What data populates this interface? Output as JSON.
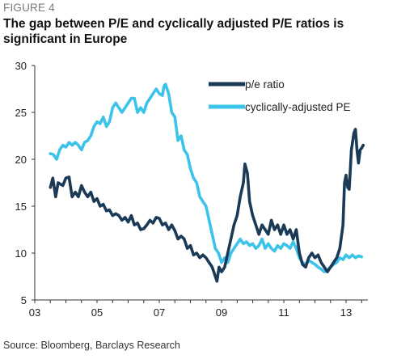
{
  "figure_label": "FIGURE 4",
  "title": "The gap between P/E and cyclically adjusted P/E ratios is significant in Europe",
  "source": "Source: Bloomberg, Barclays Research",
  "colors": {
    "pe": "#1b3a57",
    "cape": "#3cc3ea",
    "axis": "#333333"
  },
  "chart_data": {
    "type": "line",
    "title": "The gap between P/E and cyclically adjusted P/E ratios is significant in Europe",
    "xlabel": "",
    "ylabel": "",
    "xlim": [
      2003,
      2013.7
    ],
    "ylim": [
      5,
      30
    ],
    "x_ticks": [
      2003,
      2005,
      2007,
      2009,
      2011,
      2013
    ],
    "x_tick_labels": [
      "03",
      "05",
      "07",
      "09",
      "11",
      "13"
    ],
    "y_ticks": [
      5,
      10,
      15,
      20,
      25,
      30
    ],
    "grid": false,
    "legend_position": "top-right",
    "series": [
      {
        "name": "p/e ratio",
        "color": "#1b3a57",
        "points": [
          [
            2003.5,
            17.0
          ],
          [
            2003.58,
            18.0
          ],
          [
            2003.67,
            16.0
          ],
          [
            2003.75,
            17.5
          ],
          [
            2003.9,
            17.2
          ],
          [
            2004.0,
            18.0
          ],
          [
            2004.1,
            18.1
          ],
          [
            2004.2,
            16.0
          ],
          [
            2004.3,
            16.5
          ],
          [
            2004.4,
            16.0
          ],
          [
            2004.5,
            17.2
          ],
          [
            2004.6,
            16.5
          ],
          [
            2004.7,
            16.0
          ],
          [
            2004.8,
            16.5
          ],
          [
            2004.9,
            15.5
          ],
          [
            2005.0,
            15.8
          ],
          [
            2005.1,
            15.0
          ],
          [
            2005.2,
            15.2
          ],
          [
            2005.3,
            14.5
          ],
          [
            2005.4,
            14.6
          ],
          [
            2005.5,
            14.0
          ],
          [
            2005.6,
            14.2
          ],
          [
            2005.7,
            14.0
          ],
          [
            2005.8,
            13.5
          ],
          [
            2005.9,
            13.8
          ],
          [
            2006.0,
            13.3
          ],
          [
            2006.1,
            14.0
          ],
          [
            2006.2,
            13.0
          ],
          [
            2006.3,
            13.2
          ],
          [
            2006.4,
            12.5
          ],
          [
            2006.5,
            12.6
          ],
          [
            2006.6,
            13.0
          ],
          [
            2006.7,
            13.5
          ],
          [
            2006.8,
            13.2
          ],
          [
            2006.9,
            13.8
          ],
          [
            2007.0,
            13.7
          ],
          [
            2007.1,
            13.0
          ],
          [
            2007.2,
            13.2
          ],
          [
            2007.3,
            12.5
          ],
          [
            2007.4,
            13.0
          ],
          [
            2007.5,
            12.4
          ],
          [
            2007.6,
            11.5
          ],
          [
            2007.7,
            11.8
          ],
          [
            2007.8,
            11.5
          ],
          [
            2007.9,
            10.5
          ],
          [
            2008.0,
            10.8
          ],
          [
            2008.1,
            9.8
          ],
          [
            2008.2,
            10.0
          ],
          [
            2008.3,
            9.5
          ],
          [
            2008.4,
            9.8
          ],
          [
            2008.5,
            9.5
          ],
          [
            2008.6,
            9.0
          ],
          [
            2008.7,
            8.5
          ],
          [
            2008.8,
            7.5
          ],
          [
            2008.85,
            7.0
          ],
          [
            2008.92,
            8.5
          ],
          [
            2009.0,
            8.0
          ],
          [
            2009.1,
            8.5
          ],
          [
            2009.2,
            10.0
          ],
          [
            2009.3,
            11.5
          ],
          [
            2009.4,
            13.0
          ],
          [
            2009.5,
            14.0
          ],
          [
            2009.6,
            16.0
          ],
          [
            2009.7,
            17.5
          ],
          [
            2009.75,
            19.5
          ],
          [
            2009.83,
            18.5
          ],
          [
            2009.9,
            15.5
          ],
          [
            2010.0,
            14.0
          ],
          [
            2010.1,
            13.0
          ],
          [
            2010.2,
            12.0
          ],
          [
            2010.3,
            13.0
          ],
          [
            2010.4,
            12.5
          ],
          [
            2010.5,
            12.0
          ],
          [
            2010.6,
            13.5
          ],
          [
            2010.7,
            12.5
          ],
          [
            2010.8,
            13.0
          ],
          [
            2010.9,
            12.0
          ],
          [
            2011.0,
            13.0
          ],
          [
            2011.1,
            12.0
          ],
          [
            2011.2,
            12.5
          ],
          [
            2011.3,
            11.5
          ],
          [
            2011.4,
            12.5
          ],
          [
            2011.5,
            10.0
          ],
          [
            2011.6,
            8.8
          ],
          [
            2011.7,
            8.5
          ],
          [
            2011.8,
            9.5
          ],
          [
            2011.9,
            10.0
          ],
          [
            2012.0,
            9.5
          ],
          [
            2012.1,
            9.8
          ],
          [
            2012.2,
            9.0
          ],
          [
            2012.3,
            8.5
          ],
          [
            2012.4,
            8.0
          ],
          [
            2012.5,
            8.5
          ],
          [
            2012.6,
            9.0
          ],
          [
            2012.7,
            9.5
          ],
          [
            2012.8,
            10.5
          ],
          [
            2012.9,
            13.0
          ],
          [
            2012.95,
            17.5
          ],
          [
            2013.0,
            18.3
          ],
          [
            2013.05,
            17.0
          ],
          [
            2013.1,
            16.8
          ],
          [
            2013.17,
            21.0
          ],
          [
            2013.25,
            22.8
          ],
          [
            2013.3,
            23.2
          ],
          [
            2013.35,
            21.0
          ],
          [
            2013.4,
            19.6
          ],
          [
            2013.45,
            21.0
          ],
          [
            2013.5,
            21.2
          ],
          [
            2013.55,
            21.5
          ]
        ]
      },
      {
        "name": "cyclically-adjusted PE",
        "color": "#3cc3ea",
        "points": [
          [
            2003.5,
            20.6
          ],
          [
            2003.6,
            20.5
          ],
          [
            2003.7,
            20.0
          ],
          [
            2003.8,
            21.0
          ],
          [
            2003.9,
            21.5
          ],
          [
            2004.0,
            21.3
          ],
          [
            2004.1,
            21.8
          ],
          [
            2004.2,
            21.5
          ],
          [
            2004.3,
            21.8
          ],
          [
            2004.4,
            21.5
          ],
          [
            2004.5,
            21.0
          ],
          [
            2004.6,
            21.8
          ],
          [
            2004.7,
            22.0
          ],
          [
            2004.8,
            22.5
          ],
          [
            2004.9,
            23.5
          ],
          [
            2005.0,
            24.0
          ],
          [
            2005.1,
            23.8
          ],
          [
            2005.2,
            24.5
          ],
          [
            2005.3,
            23.5
          ],
          [
            2005.4,
            24.0
          ],
          [
            2005.5,
            25.5
          ],
          [
            2005.6,
            26.0
          ],
          [
            2005.7,
            25.5
          ],
          [
            2005.8,
            25.0
          ],
          [
            2005.9,
            25.5
          ],
          [
            2006.0,
            26.0
          ],
          [
            2006.1,
            26.5
          ],
          [
            2006.2,
            26.5
          ],
          [
            2006.3,
            25.0
          ],
          [
            2006.4,
            25.5
          ],
          [
            2006.5,
            25.0
          ],
          [
            2006.6,
            26.0
          ],
          [
            2006.7,
            26.5
          ],
          [
            2006.8,
            27.0
          ],
          [
            2006.9,
            27.5
          ],
          [
            2007.0,
            27.0
          ],
          [
            2007.1,
            26.8
          ],
          [
            2007.15,
            27.8
          ],
          [
            2007.2,
            28.0
          ],
          [
            2007.3,
            27.0
          ],
          [
            2007.4,
            25.0
          ],
          [
            2007.5,
            24.5
          ],
          [
            2007.6,
            22.0
          ],
          [
            2007.7,
            22.5
          ],
          [
            2007.8,
            21.0
          ],
          [
            2007.9,
            20.5
          ],
          [
            2008.0,
            19.0
          ],
          [
            2008.1,
            18.0
          ],
          [
            2008.2,
            17.5
          ],
          [
            2008.3,
            16.0
          ],
          [
            2008.4,
            15.5
          ],
          [
            2008.5,
            15.0
          ],
          [
            2008.6,
            13.5
          ],
          [
            2008.7,
            12.0
          ],
          [
            2008.8,
            10.5
          ],
          [
            2008.9,
            10.0
          ],
          [
            2009.0,
            9.0
          ],
          [
            2009.1,
            9.5
          ],
          [
            2009.2,
            9.0
          ],
          [
            2009.3,
            10.0
          ],
          [
            2009.4,
            10.5
          ],
          [
            2009.5,
            11.0
          ],
          [
            2009.6,
            11.5
          ],
          [
            2009.7,
            11.0
          ],
          [
            2009.8,
            11.2
          ],
          [
            2009.9,
            10.8
          ],
          [
            2010.0,
            11.0
          ],
          [
            2010.1,
            10.5
          ],
          [
            2010.2,
            10.8
          ],
          [
            2010.3,
            11.5
          ],
          [
            2010.4,
            10.5
          ],
          [
            2010.5,
            11.0
          ],
          [
            2010.6,
            10.5
          ],
          [
            2010.7,
            10.2
          ],
          [
            2010.8,
            10.8
          ],
          [
            2010.9,
            10.5
          ],
          [
            2011.0,
            11.0
          ],
          [
            2011.1,
            10.8
          ],
          [
            2011.2,
            10.5
          ],
          [
            2011.3,
            11.2
          ],
          [
            2011.4,
            10.5
          ],
          [
            2011.5,
            9.5
          ],
          [
            2011.6,
            9.0
          ],
          [
            2011.7,
            8.8
          ],
          [
            2011.8,
            9.2
          ],
          [
            2011.9,
            9.0
          ],
          [
            2012.0,
            8.8
          ],
          [
            2012.1,
            8.5
          ],
          [
            2012.2,
            8.3
          ],
          [
            2012.3,
            8.0
          ],
          [
            2012.4,
            8.2
          ],
          [
            2012.5,
            8.5
          ],
          [
            2012.6,
            8.8
          ],
          [
            2012.7,
            9.0
          ],
          [
            2012.8,
            9.5
          ],
          [
            2012.9,
            9.3
          ],
          [
            2013.0,
            9.8
          ],
          [
            2013.1,
            9.5
          ],
          [
            2013.2,
            9.8
          ],
          [
            2013.3,
            9.5
          ],
          [
            2013.4,
            9.7
          ],
          [
            2013.5,
            9.6
          ]
        ]
      }
    ]
  }
}
